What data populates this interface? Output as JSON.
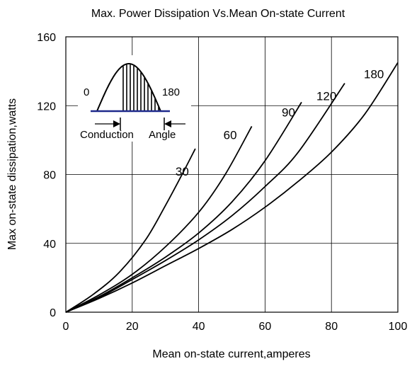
{
  "chart_data": {
    "type": "line",
    "title": "Max. Power Dissipation Vs.Mean On-state Current",
    "xlabel": "Mean on-state current,amperes",
    "ylabel": "Max on-state dissipation,watts",
    "xlim": [
      0,
      100
    ],
    "ylim": [
      0,
      160
    ],
    "x_ticks": [
      "0",
      "20",
      "40",
      "60",
      "80",
      "100"
    ],
    "y_ticks": [
      "0",
      "40",
      "80",
      "120",
      "160"
    ],
    "x_tick_values": [
      0,
      20,
      40,
      60,
      80,
      100
    ],
    "y_tick_values": [
      0,
      40,
      80,
      120,
      160
    ],
    "grid": true,
    "series": [
      {
        "name": "30",
        "x": [
          0,
          8,
          16,
          24,
          30,
          35,
          39
        ],
        "y": [
          0,
          10,
          23,
          42,
          62,
          80,
          95
        ]
      },
      {
        "name": "60",
        "x": [
          0,
          10,
          20,
          30,
          40,
          48,
          56
        ],
        "y": [
          0,
          10,
          22,
          38,
          58,
          80,
          108
        ]
      },
      {
        "name": "90",
        "x": [
          0,
          10,
          20,
          30,
          40,
          50,
          60,
          71
        ],
        "y": [
          0,
          9,
          20,
          32,
          46,
          64,
          88,
          122
        ]
      },
      {
        "name": "120",
        "x": [
          0,
          10,
          20,
          30,
          40,
          50,
          60,
          70,
          84
        ],
        "y": [
          0,
          8.5,
          19,
          30,
          42,
          56,
          73,
          93,
          133
        ]
      },
      {
        "name": "180",
        "x": [
          0,
          10,
          20,
          30,
          40,
          50,
          60,
          70,
          80,
          90,
          100
        ],
        "y": [
          0,
          8,
          17,
          27,
          37,
          48,
          61,
          76,
          93,
          115,
          145
        ]
      }
    ],
    "inset": {
      "left_label": "0",
      "right_label": "180",
      "caption_left": "Conduction",
      "caption_right": "Angle"
    }
  }
}
